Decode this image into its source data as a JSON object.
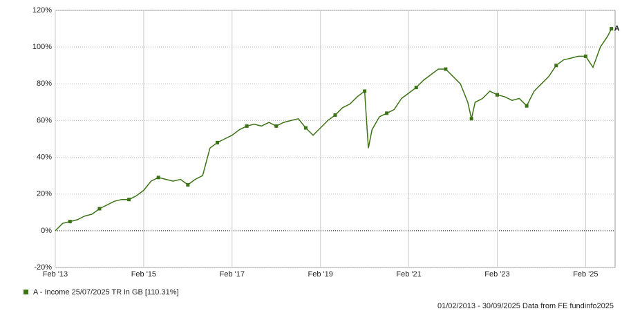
{
  "chart_data": {
    "type": "line",
    "x": [
      "2013-02",
      "2013-04",
      "2013-06",
      "2013-08",
      "2013-10",
      "2013-12",
      "2014-02",
      "2014-04",
      "2014-06",
      "2014-08",
      "2014-10",
      "2014-12",
      "2015-02",
      "2015-04",
      "2015-06",
      "2015-08",
      "2015-10",
      "2015-12",
      "2016-02",
      "2016-04",
      "2016-06",
      "2016-08",
      "2016-10",
      "2016-12",
      "2017-02",
      "2017-04",
      "2017-06",
      "2017-08",
      "2017-10",
      "2017-12",
      "2018-02",
      "2018-04",
      "2018-06",
      "2018-08",
      "2018-10",
      "2018-12",
      "2019-02",
      "2019-04",
      "2019-06",
      "2019-08",
      "2019-10",
      "2019-12",
      "2020-02",
      "2020-03",
      "2020-04",
      "2020-06",
      "2020-08",
      "2020-10",
      "2020-12",
      "2021-02",
      "2021-04",
      "2021-06",
      "2021-08",
      "2021-10",
      "2021-12",
      "2022-02",
      "2022-04",
      "2022-06",
      "2022-07",
      "2022-08",
      "2022-10",
      "2022-12",
      "2023-02",
      "2023-04",
      "2023-06",
      "2023-08",
      "2023-10",
      "2023-12",
      "2024-02",
      "2024-04",
      "2024-06",
      "2024-08",
      "2024-10",
      "2024-12",
      "2025-02",
      "2025-04",
      "2025-06",
      "2025-08",
      "2025-09"
    ],
    "series": [
      {
        "name": "A - Income 25/07/2025 TR in GB [110.31%]",
        "color": "#3d7317",
        "end_label": "A",
        "values": [
          0,
          4,
          5,
          6,
          8,
          9,
          12,
          14,
          16,
          17,
          17,
          19,
          22,
          27,
          29,
          28,
          27,
          28,
          25,
          28,
          30,
          45,
          48,
          50,
          52,
          55,
          57,
          58,
          57,
          59,
          57,
          59,
          60,
          61,
          56,
          52,
          56,
          60,
          63,
          67,
          69,
          73,
          76,
          45,
          55,
          62,
          64,
          66,
          72,
          75,
          78,
          82,
          85,
          88,
          88,
          84,
          80,
          70,
          61,
          70,
          72,
          76,
          74,
          73,
          71,
          72,
          68,
          76,
          80,
          84,
          90,
          93,
          94,
          95,
          95,
          89,
          100,
          106,
          110
        ]
      }
    ],
    "xlim": [
      "2013-02",
      "2025-10"
    ],
    "xticks": [
      {
        "value": "2013-02",
        "label": "Feb '13"
      },
      {
        "value": "2015-02",
        "label": "Feb '15"
      },
      {
        "value": "2017-02",
        "label": "Feb '17"
      },
      {
        "value": "2019-02",
        "label": "Feb '19"
      },
      {
        "value": "2021-02",
        "label": "Feb '21"
      },
      {
        "value": "2023-02",
        "label": "Feb '23"
      },
      {
        "value": "2025-02",
        "label": "Feb '25"
      }
    ],
    "ylim": [
      -20,
      120
    ],
    "yticks": [
      {
        "value": -20,
        "label": "-20%"
      },
      {
        "value": 0,
        "label": "0%"
      },
      {
        "value": 20,
        "label": "20%"
      },
      {
        "value": 40,
        "label": "40%"
      },
      {
        "value": 60,
        "label": "60%"
      },
      {
        "value": 80,
        "label": "80%"
      },
      {
        "value": 100,
        "label": "100%"
      },
      {
        "value": 120,
        "label": "120%"
      }
    ],
    "grid": true,
    "footer": "01/02/2013 - 30/09/2025 Data from FE fundinfo2025"
  }
}
